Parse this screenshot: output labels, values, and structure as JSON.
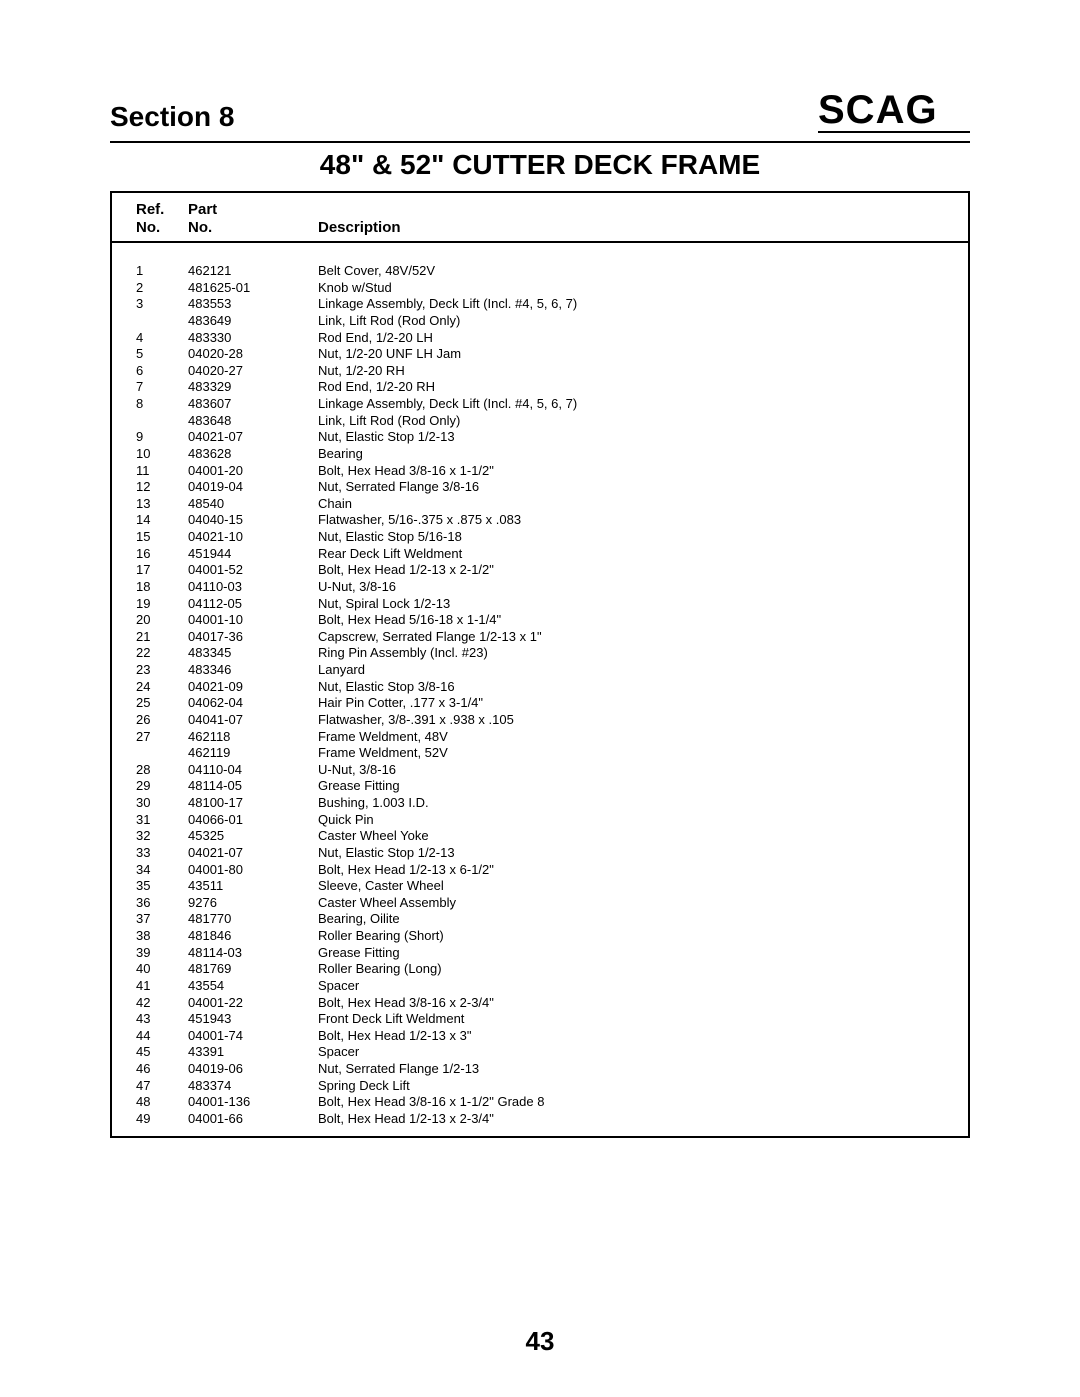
{
  "header": {
    "section_label": "Section 8",
    "logo_text": "SCAG"
  },
  "page_title": "48\" & 52\" CUTTER DECK FRAME",
  "columns": {
    "ref_line1": "Ref.",
    "ref_line2": "No.",
    "part_line1": "Part",
    "part_line2": "No.",
    "desc": "Description"
  },
  "rows": [
    {
      "ref": "1",
      "part": "462121",
      "desc": "Belt Cover, 48V/52V"
    },
    {
      "ref": "2",
      "part": "481625-01",
      "desc": "Knob w/Stud"
    },
    {
      "ref": "3",
      "part": "483553",
      "desc": "Linkage Assembly, Deck Lift (Incl. #4, 5, 6, 7)"
    },
    {
      "ref": "",
      "part": "483649",
      "desc": "Link, Lift Rod (Rod Only)"
    },
    {
      "ref": "4",
      "part": "483330",
      "desc": "Rod End, 1/2-20 LH"
    },
    {
      "ref": "5",
      "part": "04020-28",
      "desc": "Nut, 1/2-20 UNF LH Jam"
    },
    {
      "ref": "6",
      "part": "04020-27",
      "desc": "Nut, 1/2-20 RH"
    },
    {
      "ref": "7",
      "part": "483329",
      "desc": "Rod End, 1/2-20 RH"
    },
    {
      "ref": "8",
      "part": "483607",
      "desc": "Linkage Assembly, Deck Lift (Incl. #4, 5, 6, 7)"
    },
    {
      "ref": "",
      "part": "483648",
      "desc": "Link, Lift Rod (Rod Only)"
    },
    {
      "ref": "9",
      "part": "04021-07",
      "desc": "Nut, Elastic Stop 1/2-13"
    },
    {
      "ref": "10",
      "part": "483628",
      "desc": "Bearing"
    },
    {
      "ref": "11",
      "part": "04001-20",
      "desc": "Bolt, Hex Head 3/8-16 x 1-1/2\""
    },
    {
      "ref": "12",
      "part": "04019-04",
      "desc": "Nut, Serrated Flange 3/8-16"
    },
    {
      "ref": "13",
      "part": "48540",
      "desc": "Chain"
    },
    {
      "ref": "14",
      "part": "04040-15",
      "desc": "Flatwasher, 5/16-.375 x .875 x .083"
    },
    {
      "ref": "15",
      "part": "04021-10",
      "desc": "Nut, Elastic Stop 5/16-18"
    },
    {
      "ref": "16",
      "part": "451944",
      "desc": "Rear Deck Lift Weldment"
    },
    {
      "ref": "17",
      "part": "04001-52",
      "desc": "Bolt, Hex Head 1/2-13 x 2-1/2\""
    },
    {
      "ref": "18",
      "part": "04110-03",
      "desc": "U-Nut, 3/8-16"
    },
    {
      "ref": "19",
      "part": "04112-05",
      "desc": "Nut, Spiral Lock 1/2-13"
    },
    {
      "ref": "20",
      "part": "04001-10",
      "desc": "Bolt, Hex Head 5/16-18 x 1-1/4\""
    },
    {
      "ref": "21",
      "part": "04017-36",
      "desc": "Capscrew, Serrated Flange 1/2-13 x 1\""
    },
    {
      "ref": "22",
      "part": "483345",
      "desc": "Ring Pin Assembly (Incl. #23)"
    },
    {
      "ref": "23",
      "part": "483346",
      "desc": "Lanyard"
    },
    {
      "ref": "24",
      "part": "04021-09",
      "desc": "Nut, Elastic Stop 3/8-16"
    },
    {
      "ref": "25",
      "part": "04062-04",
      "desc": "Hair Pin Cotter, .177 x 3-1/4\""
    },
    {
      "ref": "26",
      "part": "04041-07",
      "desc": "Flatwasher, 3/8-.391 x .938 x .105"
    },
    {
      "ref": "27",
      "part": "462118",
      "desc": "Frame Weldment, 48V"
    },
    {
      "ref": "",
      "part": "462119",
      "desc": "Frame Weldment, 52V"
    },
    {
      "ref": "28",
      "part": "04110-04",
      "desc": "U-Nut, 3/8-16"
    },
    {
      "ref": "29",
      "part": "48114-05",
      "desc": "Grease Fitting"
    },
    {
      "ref": "30",
      "part": "48100-17",
      "desc": "Bushing, 1.003 I.D."
    },
    {
      "ref": "31",
      "part": "04066-01",
      "desc": "Quick Pin"
    },
    {
      "ref": "32",
      "part": "45325",
      "desc": "Caster Wheel Yoke"
    },
    {
      "ref": "33",
      "part": "04021-07",
      "desc": "Nut, Elastic Stop 1/2-13"
    },
    {
      "ref": "34",
      "part": "04001-80",
      "desc": "Bolt, Hex Head 1/2-13 x 6-1/2\""
    },
    {
      "ref": "35",
      "part": "43511",
      "desc": "Sleeve, Caster Wheel"
    },
    {
      "ref": "36",
      "part": "9276",
      "desc": "Caster Wheel Assembly"
    },
    {
      "ref": "37",
      "part": "481770",
      "desc": "Bearing, Oilite"
    },
    {
      "ref": "38",
      "part": "481846",
      "desc": "Roller Bearing (Short)"
    },
    {
      "ref": "39",
      "part": "48114-03",
      "desc": "Grease Fitting"
    },
    {
      "ref": "40",
      "part": "481769",
      "desc": "Roller Bearing (Long)"
    },
    {
      "ref": "41",
      "part": "43554",
      "desc": "Spacer"
    },
    {
      "ref": "42",
      "part": "04001-22",
      "desc": "Bolt, Hex Head 3/8-16 x 2-3/4\""
    },
    {
      "ref": "43",
      "part": "451943",
      "desc": "Front Deck Lift Weldment"
    },
    {
      "ref": "44",
      "part": "04001-74",
      "desc": "Bolt, Hex Head 1/2-13 x 3\""
    },
    {
      "ref": "45",
      "part": "43391",
      "desc": "Spacer"
    },
    {
      "ref": "46",
      "part": "04019-06",
      "desc": "Nut, Serrated Flange 1/2-13"
    },
    {
      "ref": "47",
      "part": "483374",
      "desc": "Spring Deck Lift"
    },
    {
      "ref": "48",
      "part": "04001-136",
      "desc": "Bolt, Hex Head 3/8-16 x 1-1/2\" Grade 8"
    },
    {
      "ref": "49",
      "part": "04001-66",
      "desc": "Bolt, Hex Head 1/2-13 x 2-3/4\""
    }
  ],
  "page_number": "43"
}
